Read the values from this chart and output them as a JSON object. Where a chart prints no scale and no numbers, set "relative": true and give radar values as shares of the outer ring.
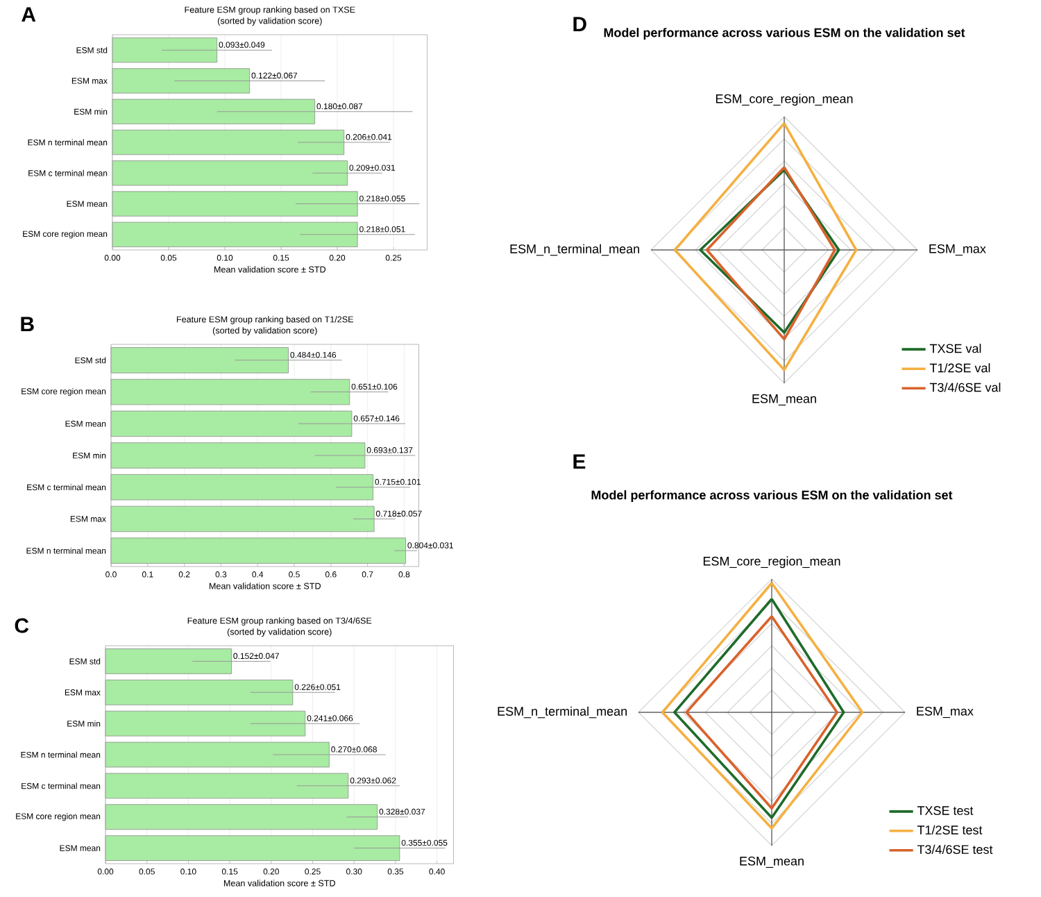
{
  "chart_data": [
    {
      "type": "bar",
      "orientation": "horizontal",
      "title": "Feature ESM group ranking based on TXSE",
      "subtitle": "(sorted by validation score)",
      "xlabel": "Mean validation score ± STD",
      "annotations": [
        "A"
      ],
      "color": "#a8eba2",
      "grid": "x",
      "categories": [
        "ESM std",
        "ESM max",
        "ESM min",
        "ESM n terminal mean",
        "ESM c terminal mean",
        "ESM mean",
        "ESM core region mean"
      ],
      "values": [
        0.093,
        0.122,
        0.18,
        0.206,
        0.209,
        0.218,
        0.218
      ],
      "errors": [
        0.049,
        0.067,
        0.087,
        0.041,
        0.031,
        0.055,
        0.051
      ],
      "value_labels": [
        "0.093±0.049",
        "0.122±0.067",
        "0.180±0.087",
        "0.206±0.041",
        "0.209±0.031",
        "0.218±0.055",
        "0.218±0.051"
      ],
      "xlim": [
        0,
        0.28
      ],
      "xticks": [
        {
          "value": 0,
          "label": "0.00"
        },
        {
          "value": 0.05,
          "label": "0.05"
        },
        {
          "value": 0.1,
          "label": "0.10"
        },
        {
          "value": 0.15,
          "label": "0.15"
        },
        {
          "value": 0.2,
          "label": "0.20"
        },
        {
          "value": 0.25,
          "label": "0.25"
        }
      ]
    },
    {
      "type": "bar",
      "orientation": "horizontal",
      "title": "Feature ESM group ranking based on T1/2SE",
      "subtitle": "(sorted by validation score)",
      "xlabel": "Mean validation score ± STD",
      "annotations": [
        "B"
      ],
      "color": "#a8eba2",
      "grid": "x",
      "categories": [
        "ESM std",
        "ESM core region mean",
        "ESM mean",
        "ESM min",
        "ESM c terminal mean",
        "ESM max",
        "ESM n terminal mean"
      ],
      "values": [
        0.484,
        0.651,
        0.657,
        0.693,
        0.715,
        0.718,
        0.804
      ],
      "errors": [
        0.146,
        0.106,
        0.146,
        0.137,
        0.101,
        0.057,
        0.031
      ],
      "value_labels": [
        "0.484±0.146",
        "0.651±0.106",
        "0.657±0.146",
        "0.693±0.137",
        "0.715±0.101",
        "0.718±0.057",
        "0.804±0.031"
      ],
      "xlim": [
        0,
        0.84
      ],
      "xticks": [
        {
          "value": 0,
          "label": "0.0"
        },
        {
          "value": 0.1,
          "label": "0.1"
        },
        {
          "value": 0.2,
          "label": "0.2"
        },
        {
          "value": 0.3,
          "label": "0.3"
        },
        {
          "value": 0.4,
          "label": "0.4"
        },
        {
          "value": 0.5,
          "label": "0.5"
        },
        {
          "value": 0.6,
          "label": "0.6"
        },
        {
          "value": 0.7,
          "label": "0.7"
        },
        {
          "value": 0.8,
          "label": "0.8"
        }
      ]
    },
    {
      "type": "bar",
      "orientation": "horizontal",
      "title": "Feature ESM group ranking based on T3/4/6SE",
      "subtitle": "(sorted by validation score)",
      "xlabel": "Mean validation score ± STD",
      "annotations": [
        "C"
      ],
      "color": "#a8eba2",
      "grid": "x",
      "categories": [
        "ESM std",
        "ESM max",
        "ESM min",
        "ESM n terminal mean",
        "ESM c terminal mean",
        "ESM core region mean",
        "ESM mean"
      ],
      "values": [
        0.152,
        0.226,
        0.241,
        0.27,
        0.293,
        0.328,
        0.355
      ],
      "errors": [
        0.047,
        0.051,
        0.066,
        0.068,
        0.062,
        0.037,
        0.055
      ],
      "value_labels": [
        "0.152±0.047",
        "0.226±0.051",
        "0.241±0.066",
        "0.270±0.068",
        "0.293±0.062",
        "0.328±0.037",
        "0.355±0.055"
      ],
      "xlim": [
        0,
        0.42
      ],
      "xticks": [
        {
          "value": 0,
          "label": "0.00"
        },
        {
          "value": 0.05,
          "label": "0.05"
        },
        {
          "value": 0.1,
          "label": "0.10"
        },
        {
          "value": 0.15,
          "label": "0.15"
        },
        {
          "value": 0.2,
          "label": "0.20"
        },
        {
          "value": 0.25,
          "label": "0.25"
        },
        {
          "value": 0.3,
          "label": "0.30"
        },
        {
          "value": 0.35,
          "label": "0.35"
        },
        {
          "value": 0.4,
          "label": "0.40"
        }
      ]
    },
    {
      "type": "radar",
      "relative": true,
      "title": "Model performance across various ESM on the validation set",
      "annotations": [
        "D"
      ],
      "legend": "bottom right",
      "categories": [
        "ESM_core_region_mean",
        "ESM_max",
        "ESM_mean",
        "ESM_n_terminal_mean"
      ],
      "series": [
        {
          "name": "TXSE val",
          "color": "#1e6b2a",
          "values": [
            0.6,
            0.41,
            0.62,
            0.63
          ]
        },
        {
          "name": "T1/2SE val",
          "color": "#f5b041",
          "values": [
            0.95,
            0.54,
            0.9,
            0.82
          ]
        },
        {
          "name": "T3/4/6SE val",
          "color": "#d9622b",
          "values": [
            0.62,
            0.38,
            0.67,
            0.58
          ]
        }
      ]
    },
    {
      "type": "radar",
      "relative": true,
      "title": "Model performance across various ESM on the validation set",
      "annotations": [
        "E"
      ],
      "legend": "bottom right",
      "categories": [
        "ESM_core_region_mean",
        "ESM_max",
        "ESM_mean",
        "ESM_n_terminal_mean"
      ],
      "series": [
        {
          "name": "TXSE test",
          "color": "#1e6b2a",
          "values": [
            0.85,
            0.54,
            0.79,
            0.73
          ]
        },
        {
          "name": "T1/2SE test",
          "color": "#f5b041",
          "values": [
            0.97,
            0.68,
            0.87,
            0.82
          ]
        },
        {
          "name": "T3/4/6SE test",
          "color": "#d9622b",
          "values": [
            0.72,
            0.49,
            0.72,
            0.64
          ]
        }
      ]
    }
  ]
}
